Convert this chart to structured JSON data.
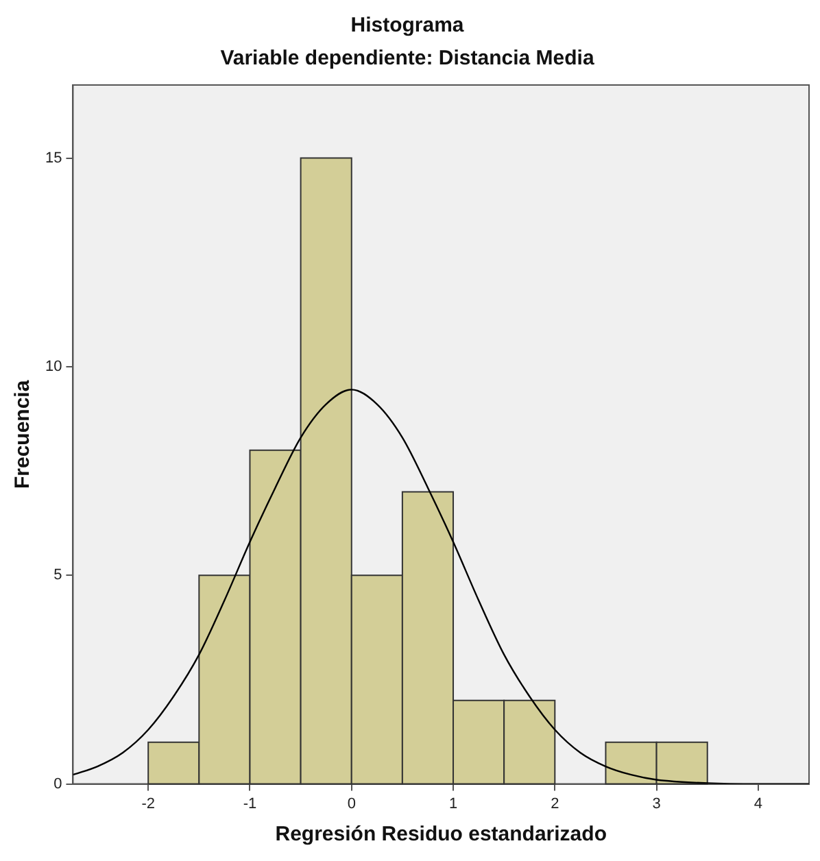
{
  "chart_data": {
    "type": "histogram",
    "title": "Histograma",
    "subtitle": "Variable dependiente: Distancia Media",
    "xlabel": "Regresión Residuo estandarizado",
    "ylabel": "Frecuencia",
    "bins": [
      -2,
      -1.5,
      -1,
      -0.5,
      0,
      0.5,
      1,
      1.5,
      2,
      2.5,
      3,
      3.5
    ],
    "values": [
      1,
      5,
      8,
      15,
      5,
      7,
      2,
      2,
      0,
      1,
      1
    ],
    "color": "#d3ce97",
    "series": [
      {
        "type": "line",
        "color": "#000000",
        "x": [
          -2.74,
          -2.5,
          -2.25,
          -2,
          -1.75,
          -1.5,
          -1.25,
          -1,
          -0.75,
          -0.5,
          -0.25,
          0,
          0.25,
          0.5,
          0.75,
          1,
          1.25,
          1.5,
          1.75,
          2,
          2.25,
          2.5,
          2.75,
          3,
          3.5,
          4,
          4.5
        ],
        "values": [
          0.22,
          0.42,
          0.75,
          1.3,
          2.1,
          3.1,
          4.4,
          5.8,
          7.1,
          8.3,
          9.1,
          9.45,
          9.1,
          8.3,
          7.1,
          5.8,
          4.4,
          3.1,
          2.1,
          1.3,
          0.75,
          0.42,
          0.22,
          0.1,
          0.02,
          0,
          0
        ]
      }
    ],
    "xlim": [
      -2.74,
      4.5
    ],
    "xticks": [
      -2,
      -1,
      0,
      1,
      2,
      3,
      4
    ],
    "ylim": [
      0,
      16.75
    ],
    "yticks": [
      0,
      5,
      10,
      15
    ],
    "grid": false,
    "legend": false,
    "marker": "none",
    "line_style": "solid"
  }
}
